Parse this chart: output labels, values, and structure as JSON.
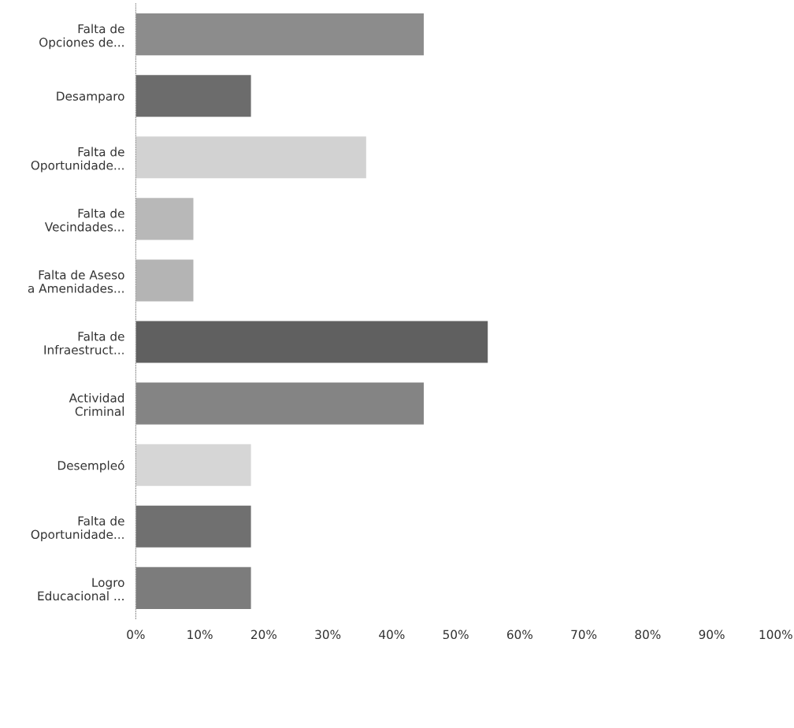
{
  "chart_data": {
    "type": "bar",
    "orientation": "horizontal",
    "categories": [
      "Falta de\nOpciones de...",
      "Desamparo",
      "Falta de\nOportunidade...",
      "Falta de\nVecindades...",
      "Falta de Aseso\na Amenidades...",
      "Falta de\nInfraestruct...",
      "Actividad\nCriminal",
      "Desempleó",
      "Falta de\nOportunidade...",
      "Logro\nEducacional ..."
    ],
    "values": [
      45,
      18,
      36,
      9,
      9,
      55,
      45,
      18,
      18,
      18
    ],
    "colors": [
      "#8c8c8c",
      "#6c6c6c",
      "#d2d2d2",
      "#b8b8b8",
      "#b4b4b4",
      "#606060",
      "#848484",
      "#d6d6d6",
      "#707070",
      "#7c7c7c"
    ],
    "xlim": [
      0,
      100
    ],
    "xticks": [
      {
        "value": 0,
        "label": "0%"
      },
      {
        "value": 10,
        "label": "10%"
      },
      {
        "value": 20,
        "label": "20%"
      },
      {
        "value": 30,
        "label": "30%"
      },
      {
        "value": 40,
        "label": "40%"
      },
      {
        "value": 50,
        "label": "50%"
      },
      {
        "value": 60,
        "label": "60%"
      },
      {
        "value": 70,
        "label": "70%"
      },
      {
        "value": 80,
        "label": "80%"
      },
      {
        "value": 90,
        "label": "90%"
      },
      {
        "value": 100,
        "label": "100%"
      }
    ],
    "grid": false,
    "legend": false
  }
}
